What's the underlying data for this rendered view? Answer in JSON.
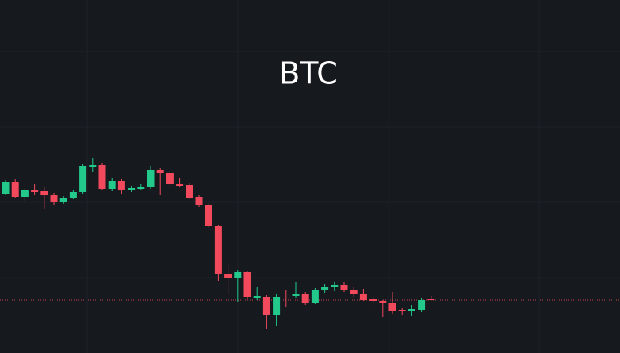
{
  "chart_data": {
    "type": "candlestick",
    "title": "BTC",
    "open": [
      201,
      215,
      197,
      205,
      204,
      199,
      190,
      196,
      203,
      235,
      237,
      207,
      217,
      206,
      207,
      209,
      231,
      227,
      213,
      212,
      197,
      187,
      160,
      100,
      94,
      102,
      69,
      71,
      48,
      71,
      72,
      74,
      63,
      79,
      83,
      86,
      79,
      75,
      68,
      66,
      63,
      54,
      53,
      54,
      68
    ],
    "high": [
      218,
      219,
      208,
      213,
      209,
      202,
      198,
      205,
      238,
      246,
      239,
      220,
      219,
      210,
      213,
      236,
      233,
      229,
      220,
      214,
      199,
      188,
      161,
      112,
      105,
      104,
      83,
      73,
      74,
      79,
      89,
      77,
      82,
      87,
      90,
      89,
      83,
      81,
      71,
      67,
      77,
      57,
      61,
      69,
      72
    ],
    "low": [
      199,
      195,
      191,
      199,
      181,
      187,
      188,
      194,
      201,
      228,
      205,
      204,
      201,
      203,
      205,
      207,
      199,
      209,
      209,
      194,
      184,
      159,
      91,
      75,
      64,
      68,
      67,
      30,
      34,
      58,
      69,
      60,
      62,
      76,
      78,
      77,
      71,
      65,
      61,
      45,
      49,
      48,
      47,
      52,
      65
    ],
    "close": [
      215,
      197,
      205,
      203,
      199,
      190,
      196,
      203,
      236,
      237,
      207,
      217,
      205,
      208,
      209,
      231,
      227,
      213,
      211,
      196,
      186,
      160,
      100,
      94,
      102,
      70,
      72,
      48,
      71,
      70,
      75,
      63,
      80,
      83,
      86,
      79,
      74,
      67,
      65,
      63,
      53,
      53,
      55,
      67,
      67
    ],
    "up_color": "#22c98a",
    "down_color": "#f2495c",
    "last_price": 67,
    "ylim": [
      0,
      445
    ]
  }
}
